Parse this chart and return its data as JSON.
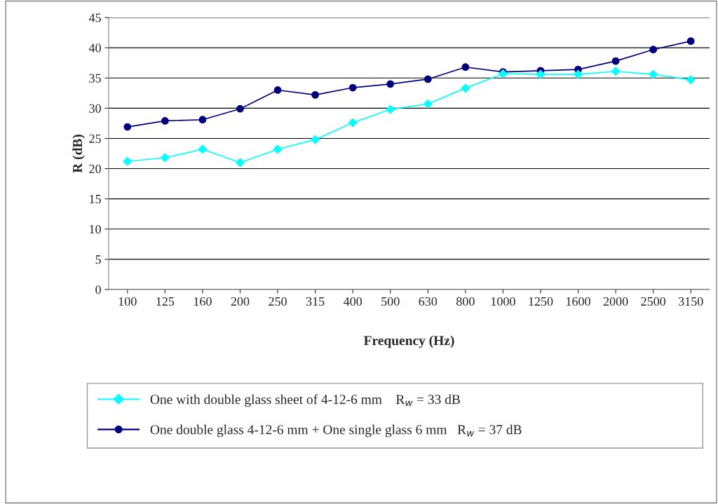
{
  "chart_data": {
    "type": "line",
    "xlabel": "Frequency (Hz)",
    "ylabel": "R (dB)",
    "categories": [
      "100",
      "125",
      "160",
      "200",
      "250",
      "315",
      "400",
      "500",
      "630",
      "800",
      "1000",
      "1250",
      "1600",
      "2000",
      "2500",
      "3150"
    ],
    "series": [
      {
        "name": "One with double glass sheet of 4-12-6 mm    R$_{w}$ = 33 dB",
        "color": "#00ffff",
        "marker": "diamond",
        "values": [
          21.2,
          21.8,
          23.2,
          21.0,
          23.2,
          24.8,
          27.6,
          29.8,
          30.7,
          33.3,
          35.7,
          35.6,
          35.6,
          36.1,
          35.6,
          34.7
        ]
      },
      {
        "name": "One double glass 4-12-6 mm + One single glass 6 mm   R$_{w}$ = 37 dB",
        "color": "#000080",
        "marker": "circle",
        "values": [
          26.9,
          27.9,
          28.1,
          29.9,
          33.0,
          32.2,
          33.4,
          34.0,
          34.8,
          36.8,
          36.0,
          36.2,
          36.4,
          37.8,
          39.7,
          41.1
        ]
      }
    ],
    "ylim": [
      0,
      45
    ],
    "yticks": [
      0,
      5,
      10,
      15,
      20,
      25,
      30,
      35,
      40,
      45
    ],
    "grid": "y",
    "legend": "bottom",
    "line_style": "solid"
  }
}
